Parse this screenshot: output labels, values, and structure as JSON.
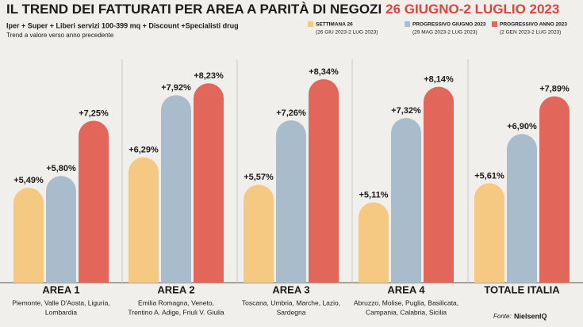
{
  "chart_data": {
    "type": "bar",
    "title": "IL TREND DEI FATTURATI PER AREA A PARITÀ DI NEGOZI",
    "title_period": "26 GIUGNO-2 LUGLIO 2023",
    "subtitle": "Iper + Super + Liberi servizi 100-399 mq + Discount +Specialisti drug",
    "note": "Trend a valore verso anno precedente",
    "categories": [
      "AREA 1",
      "AREA 2",
      "AREA 3",
      "AREA 4",
      "TOTALE ITALIA"
    ],
    "category_notes": [
      [
        "Piemonte, Valle D'Aosta, Liguria,",
        "Lombardia"
      ],
      [
        "Emilia Romagna, Veneto,",
        "Trentino A. Adige, Friuli V. Giulia"
      ],
      [
        "Toscana, Umbria, Marche, Lazio,",
        "Sardegna"
      ],
      [
        "Abruzzo, Molise, Puglia, Basilicata,",
        "Campania, Calabria, Sicilia"
      ],
      []
    ],
    "series": [
      {
        "name": "SETTIMANA 26",
        "period": "(26 GIU 2023-2 LUG 2023)",
        "color": "#f6c983",
        "values": [
          5.49,
          6.29,
          5.57,
          5.11,
          5.61
        ],
        "value_labels": [
          "+5,49%",
          "+6,29%",
          "+5,57%",
          "+5,11%",
          "+5,61%"
        ]
      },
      {
        "name": "PROGRESSIVO GIUGNO 2023",
        "period": "(29 MAG 2023-2 LUG 2023)",
        "color": "#a9bccb",
        "values": [
          5.8,
          7.92,
          7.26,
          7.32,
          6.9
        ],
        "value_labels": [
          "+5,80%",
          "+7,92%",
          "+7,26%",
          "+7,32%",
          "+6,90%"
        ]
      },
      {
        "name": "PROGRESSIVO ANNO 2023",
        "period": "(2 GEN 2023-2 LUG 2023)",
        "color": "#e2665a",
        "values": [
          7.25,
          8.23,
          8.34,
          8.14,
          7.89
        ],
        "value_labels": [
          "+7,25%",
          "+8,23%",
          "+8,34%",
          "+8,14%",
          "+7,89%"
        ]
      }
    ],
    "source_label": "Fonte:",
    "source": "NielsenIQ"
  }
}
